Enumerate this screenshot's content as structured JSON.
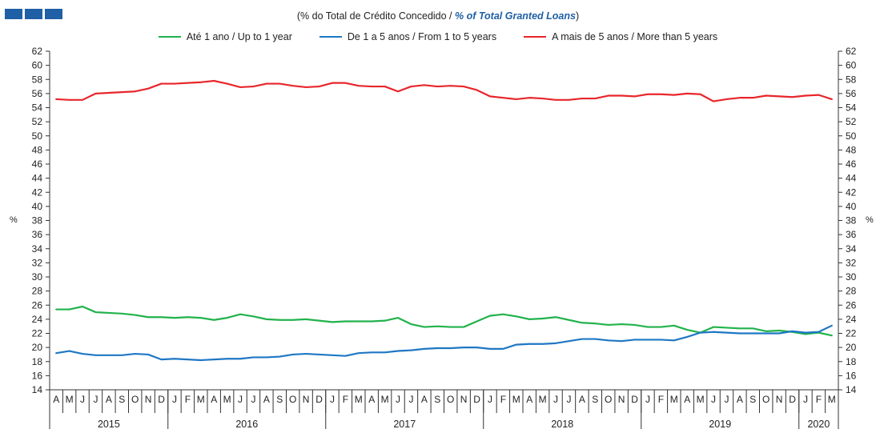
{
  "header": {
    "title_pt": "(% do Total de Crédito Concedido  / ",
    "title_en": "% of Total Granted Loans",
    "title_close": ")"
  },
  "legend": [
    {
      "label": "Até 1 ano / Up to 1 year",
      "color": "#22b24c"
    },
    {
      "label": "De 1 a 5 anos / From 1 to 5 years",
      "color": "#1f77c4"
    },
    {
      "label": "A mais de 5 anos / More than 5 years",
      "color": "#e8262b"
    }
  ],
  "axes": {
    "left_unit": "%",
    "right_unit": "%"
  },
  "chart_data": {
    "type": "line",
    "ylim": [
      14,
      62
    ],
    "ytick_step": 2,
    "grid": false,
    "legend_position": "top",
    "x": [
      "A",
      "M",
      "J",
      "J",
      "A",
      "S",
      "O",
      "N",
      "D",
      "J",
      "F",
      "M",
      "A",
      "M",
      "J",
      "J",
      "A",
      "S",
      "O",
      "N",
      "D",
      "J",
      "F",
      "M",
      "A",
      "M",
      "J",
      "J",
      "A",
      "S",
      "O",
      "N",
      "D",
      "J",
      "F",
      "M",
      "A",
      "M",
      "J",
      "J",
      "A",
      "S",
      "O",
      "N",
      "D",
      "J",
      "F",
      "M",
      "A",
      "M",
      "J",
      "J",
      "A",
      "S",
      "O",
      "N",
      "D",
      "J",
      "F",
      "M"
    ],
    "years": [
      {
        "label": "2015",
        "count": 9
      },
      {
        "label": "2016",
        "count": 12
      },
      {
        "label": "2017",
        "count": 12
      },
      {
        "label": "2018",
        "count": 12
      },
      {
        "label": "2019",
        "count": 12
      },
      {
        "label": "2020",
        "count": 3
      }
    ],
    "series": [
      {
        "name": "Até 1 ano / Up to 1 year",
        "color": "#22b24c",
        "values": [
          25.4,
          25.4,
          25.8,
          25.0,
          24.9,
          24.8,
          24.6,
          24.3,
          24.3,
          24.2,
          24.3,
          24.2,
          23.9,
          24.2,
          24.7,
          24.4,
          24.0,
          23.9,
          23.9,
          24.0,
          23.8,
          23.6,
          23.7,
          23.7,
          23.7,
          23.8,
          24.2,
          23.3,
          22.9,
          23.0,
          22.9,
          22.9,
          23.7,
          24.5,
          24.7,
          24.4,
          24.0,
          24.1,
          24.3,
          23.9,
          23.5,
          23.4,
          23.2,
          23.3,
          23.2,
          22.9,
          22.9,
          23.1,
          22.5,
          22.1,
          22.9,
          22.8,
          22.7,
          22.7,
          22.3,
          22.4,
          22.2,
          21.9,
          22.1,
          21.7
        ]
      },
      {
        "name": "De 1 a 5 anos / From 1 to 5 years",
        "color": "#1f77c4",
        "values": [
          19.2,
          19.5,
          19.1,
          18.9,
          18.9,
          18.9,
          19.1,
          19.0,
          18.3,
          18.4,
          18.3,
          18.2,
          18.3,
          18.4,
          18.4,
          18.6,
          18.6,
          18.7,
          19.0,
          19.1,
          19.0,
          18.9,
          18.8,
          19.2,
          19.3,
          19.3,
          19.5,
          19.6,
          19.8,
          19.9,
          19.9,
          20.0,
          20.0,
          19.8,
          19.8,
          20.4,
          20.5,
          20.5,
          20.6,
          20.9,
          21.2,
          21.2,
          21.0,
          20.9,
          21.1,
          21.1,
          21.1,
          21.0,
          21.5,
          22.1,
          22.2,
          22.1,
          22.0,
          22.0,
          22.0,
          22.0,
          22.3,
          22.1,
          22.2,
          23.1
        ]
      },
      {
        "name": "A mais de 5 anos / More than 5 years",
        "color": "#e8262b",
        "values": [
          55.2,
          55.1,
          55.1,
          56.0,
          56.1,
          56.2,
          56.3,
          56.7,
          57.4,
          57.4,
          57.5,
          57.6,
          57.8,
          57.4,
          56.9,
          57.0,
          57.4,
          57.4,
          57.1,
          56.9,
          57.0,
          57.5,
          57.5,
          57.1,
          57.0,
          57.0,
          56.3,
          57.0,
          57.2,
          57.0,
          57.1,
          57.0,
          56.5,
          55.6,
          55.4,
          55.2,
          55.4,
          55.3,
          55.1,
          55.1,
          55.3,
          55.3,
          55.7,
          55.7,
          55.6,
          55.9,
          55.9,
          55.8,
          56.0,
          55.9,
          54.9,
          55.2,
          55.4,
          55.4,
          55.7,
          55.6,
          55.5,
          55.7,
          55.8,
          55.2
        ]
      }
    ]
  }
}
